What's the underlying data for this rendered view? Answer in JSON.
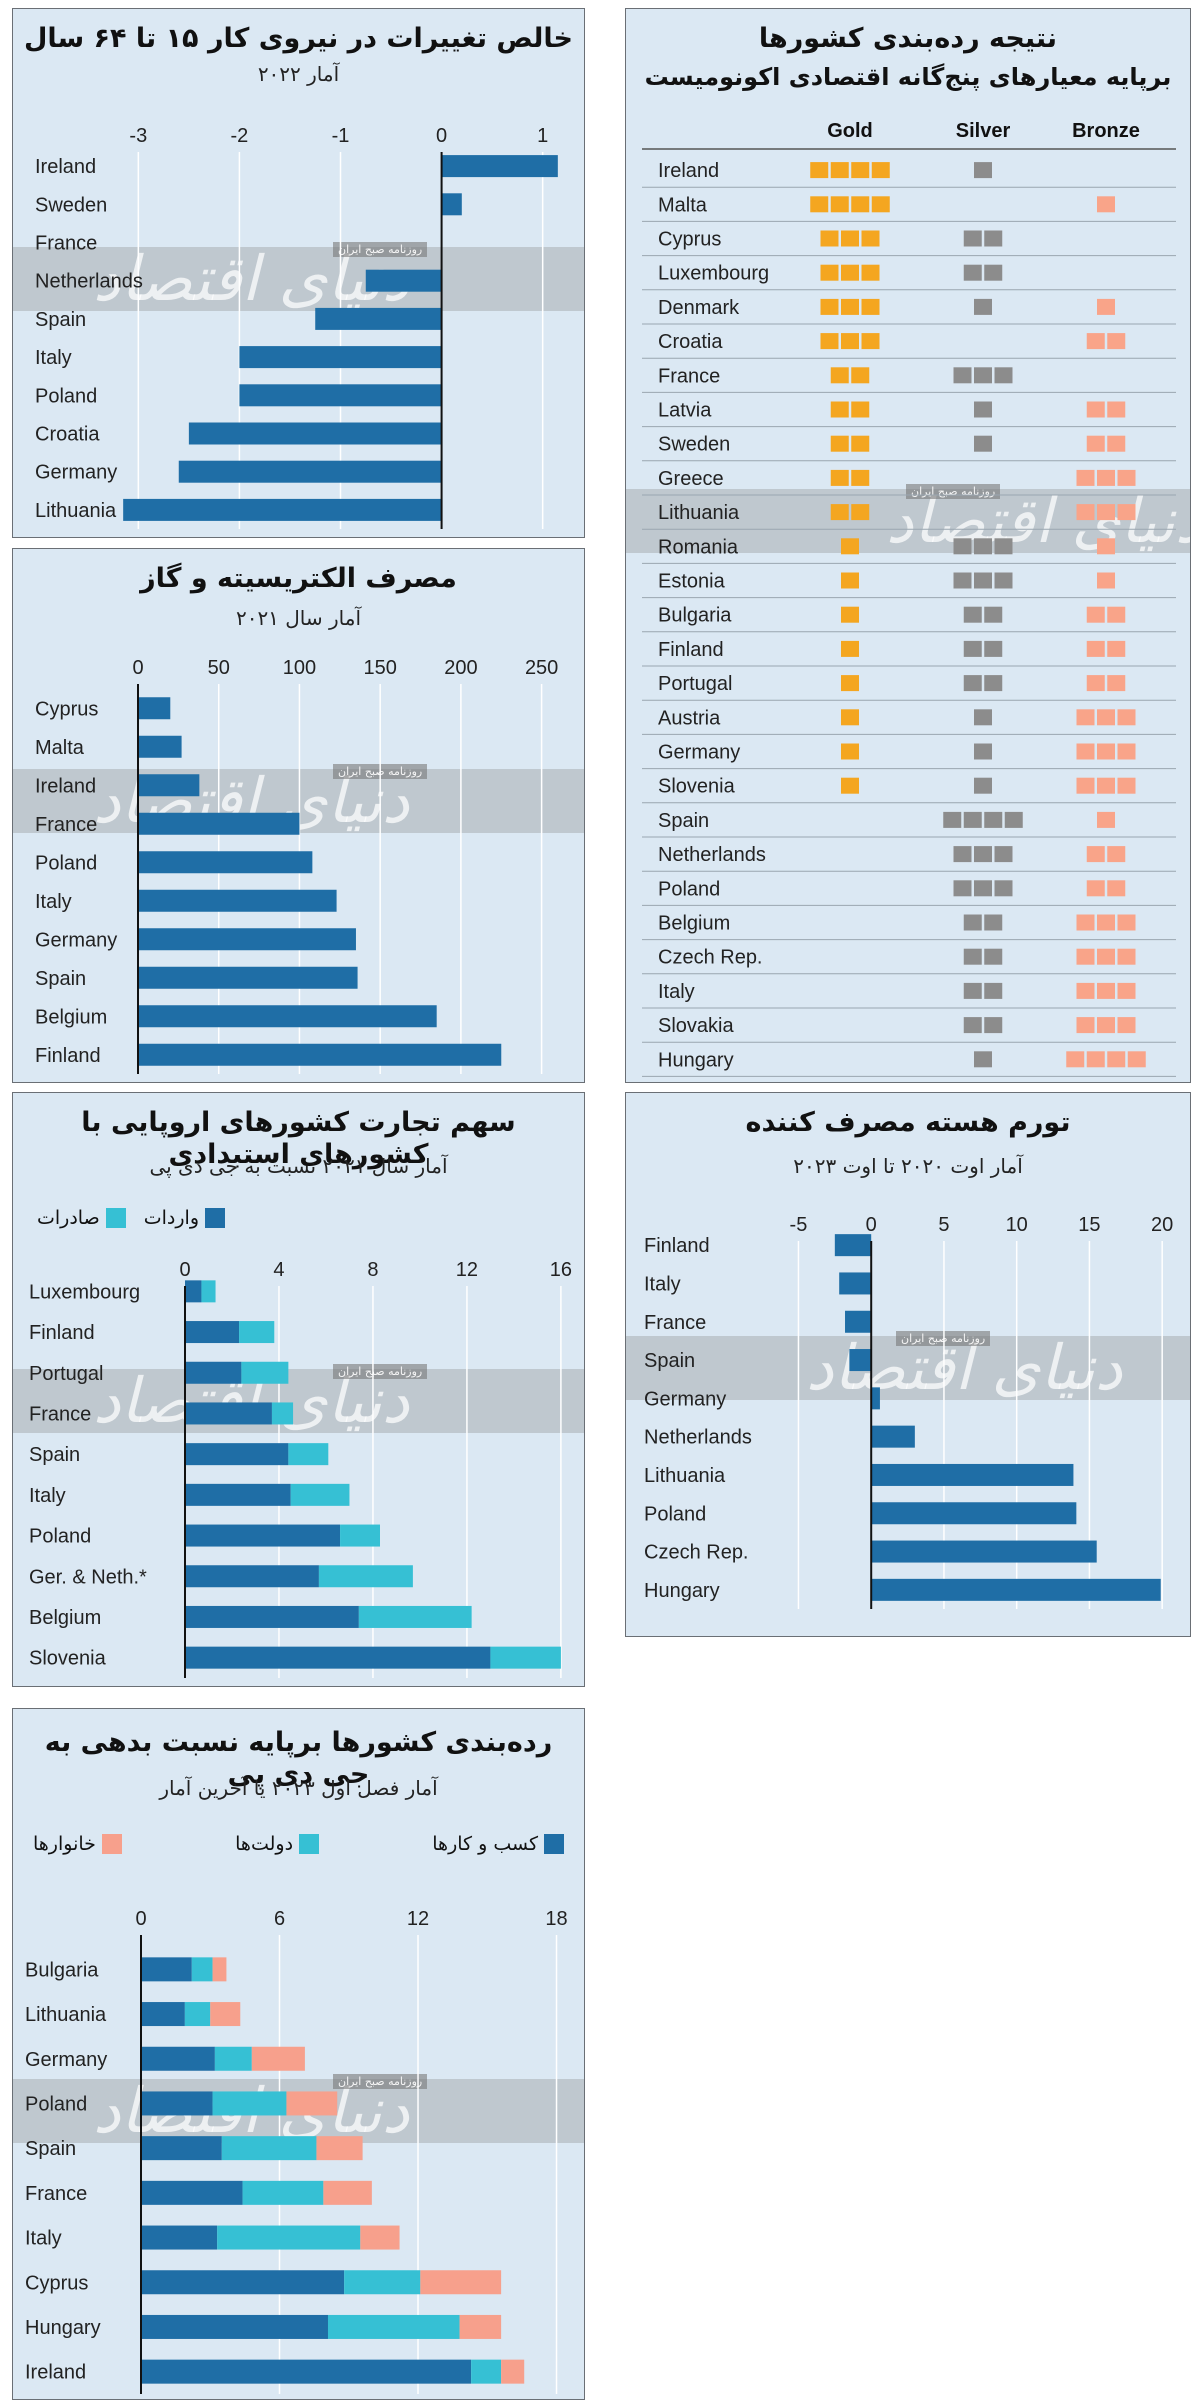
{
  "watermark": {
    "brand": "دنیای اقتصاد",
    "sub": "روزنامه صبح ایران"
  },
  "colors": {
    "blue": "#1f6ea6",
    "teal": "#36c0d4",
    "salmon": "#f7a08c",
    "gold": "#f4a620",
    "silver": "#8c8c8c",
    "bronze": "#f9a489"
  },
  "panels": {
    "workforce": {
      "title": "خالص تغییرات در نیروی کار ۱۵ تا ۶۴ سال",
      "subtitle": "آمار ۲۰۲۲",
      "chart_data": {
        "type": "bar",
        "orientation": "horizontal",
        "categories": [
          "Ireland",
          "Sweden",
          "France",
          "Netherlands",
          "Spain",
          "Italy",
          "Poland",
          "Croatia",
          "Germany",
          "Lithuania"
        ],
        "values": [
          1.15,
          0.2,
          0,
          -0.75,
          -1.25,
          -2.0,
          -2.0,
          -2.5,
          -2.6,
          -3.15
        ],
        "xlim": [
          -3.3,
          1.3
        ],
        "ticks": [
          -3,
          -2,
          -1,
          0,
          1
        ]
      }
    },
    "electricity": {
      "title": "مصرف الکتریسیته و گاز",
      "subtitle": "آمار سال ۲۰۲۱",
      "chart_data": {
        "type": "bar",
        "orientation": "horizontal",
        "categories": [
          "Cyprus",
          "Malta",
          "Ireland",
          "France",
          "Poland",
          "Italy",
          "Germany",
          "Spain",
          "Belgium",
          "Finland"
        ],
        "values": [
          20,
          27,
          38,
          100,
          108,
          123,
          135,
          136,
          185,
          225
        ],
        "xlim": [
          0,
          262
        ],
        "ticks": [
          0,
          50,
          100,
          150,
          200,
          250
        ]
      }
    },
    "trade": {
      "title": "سهم تجارت کشورهای اروپایی با کشورهای استبدادی",
      "subtitle": "آمار سال ۲۰۲۱ نسبت به جی دی پی",
      "legend": [
        {
          "label": "واردات",
          "color": "#1f6ea6"
        },
        {
          "label": "صادرات",
          "color": "#36c0d4"
        }
      ],
      "chart_data": {
        "type": "bar",
        "orientation": "horizontal",
        "stacked": true,
        "categories": [
          "Luxembourg",
          "Finland",
          "Portugal",
          "France",
          "Spain",
          "Italy",
          "Poland",
          "Ger. & Neth.*",
          "Belgium",
          "Slovenia"
        ],
        "series": [
          {
            "name": "واردات",
            "values": [
              0.7,
              2.3,
              2.4,
              3.7,
              4.4,
              4.5,
              6.6,
              5.7,
              7.4,
              13.0
            ]
          },
          {
            "name": "صادرات",
            "values": [
              0.6,
              1.5,
              2.0,
              0.9,
              1.7,
              2.5,
              1.7,
              4.0,
              4.8,
              3.0
            ]
          }
        ],
        "xlim": [
          0,
          16.6
        ],
        "ticks": [
          0,
          4,
          8,
          12,
          16
        ]
      }
    },
    "debt": {
      "title": "رده‌بندی کشورها برپایه نسبت بدهی به جی دی پی",
      "subtitle": "آمار فصل اول ۲۰۲۳ یا آخرین آمار",
      "legend": [
        {
          "label": "کسب و کارها",
          "color": "#1f6ea6"
        },
        {
          "label": "دولت‌ها",
          "color": "#36c0d4"
        },
        {
          "label": "خانوارها",
          "color": "#f7a08c"
        }
      ],
      "chart_data": {
        "type": "bar",
        "orientation": "horizontal",
        "stacked": true,
        "categories": [
          "Bulgaria",
          "Lithuania",
          "Germany",
          "Poland",
          "Spain",
          "France",
          "Italy",
          "Cyprus",
          "Hungary",
          "Ireland"
        ],
        "series": [
          {
            "name": "کسب و کارها",
            "values": [
              2.2,
              1.9,
              3.2,
              3.1,
              3.5,
              4.4,
              3.3,
              8.8,
              8.1,
              14.3
            ]
          },
          {
            "name": "دولت‌ها",
            "values": [
              0.9,
              1.1,
              1.6,
              3.2,
              4.1,
              3.5,
              6.2,
              3.3,
              5.7,
              1.3
            ]
          },
          {
            "name": "خانوارها",
            "values": [
              0.6,
              1.3,
              2.3,
              2.2,
              2.0,
              2.1,
              1.7,
              3.5,
              1.8,
              1.0
            ]
          }
        ],
        "xlim": [
          0,
          18.8
        ],
        "ticks": [
          0,
          6,
          12,
          18
        ]
      }
    },
    "ranking": {
      "title": "نتیجه رده‌بندی کشورها",
      "subtitle": "برپایه معیارهای پنج‌گانه اقتصادی اکونومیست",
      "chart_data": {
        "type": "table",
        "columns": [
          "Gold",
          "Silver",
          "Bronze"
        ],
        "rows": [
          {
            "country": "Ireland",
            "gold": 4,
            "silver": 1,
            "bronze": 0
          },
          {
            "country": "Malta",
            "gold": 4,
            "silver": 0,
            "bronze": 1
          },
          {
            "country": "Cyprus",
            "gold": 3,
            "silver": 2,
            "bronze": 0
          },
          {
            "country": "Luxembourg",
            "gold": 3,
            "silver": 2,
            "bronze": 0
          },
          {
            "country": "Denmark",
            "gold": 3,
            "silver": 1,
            "bronze": 1
          },
          {
            "country": "Croatia",
            "gold": 3,
            "silver": 0,
            "bronze": 2
          },
          {
            "country": "France",
            "gold": 2,
            "silver": 3,
            "bronze": 0
          },
          {
            "country": "Latvia",
            "gold": 2,
            "silver": 1,
            "bronze": 2
          },
          {
            "country": "Sweden",
            "gold": 2,
            "silver": 1,
            "bronze": 2
          },
          {
            "country": "Greece",
            "gold": 2,
            "silver": 0,
            "bronze": 3
          },
          {
            "country": "Lithuania",
            "gold": 2,
            "silver": 0,
            "bronze": 3
          },
          {
            "country": "Romania",
            "gold": 1,
            "silver": 3,
            "bronze": 1
          },
          {
            "country": "Estonia",
            "gold": 1,
            "silver": 3,
            "bronze": 1
          },
          {
            "country": "Bulgaria",
            "gold": 1,
            "silver": 2,
            "bronze": 2
          },
          {
            "country": "Finland",
            "gold": 1,
            "silver": 2,
            "bronze": 2
          },
          {
            "country": "Portugal",
            "gold": 1,
            "silver": 2,
            "bronze": 2
          },
          {
            "country": "Austria",
            "gold": 1,
            "silver": 1,
            "bronze": 3
          },
          {
            "country": "Germany",
            "gold": 1,
            "silver": 1,
            "bronze": 3
          },
          {
            "country": "Slovenia",
            "gold": 1,
            "silver": 1,
            "bronze": 3
          },
          {
            "country": "Spain",
            "gold": 0,
            "silver": 4,
            "bronze": 1
          },
          {
            "country": "Netherlands",
            "gold": 0,
            "silver": 3,
            "bronze": 2
          },
          {
            "country": "Poland",
            "gold": 0,
            "silver": 3,
            "bronze": 2
          },
          {
            "country": "Belgium",
            "gold": 0,
            "silver": 2,
            "bronze": 3
          },
          {
            "country": "Czech Rep.",
            "gold": 0,
            "silver": 2,
            "bronze": 3
          },
          {
            "country": "Italy",
            "gold": 0,
            "silver": 2,
            "bronze": 3
          },
          {
            "country": "Slovakia",
            "gold": 0,
            "silver": 2,
            "bronze": 3
          },
          {
            "country": "Hungary",
            "gold": 0,
            "silver": 1,
            "bronze": 4
          }
        ]
      }
    },
    "inflation": {
      "title": "تورم هسته مصرف کننده",
      "subtitle": "آمار اوت ۲۰۲۰ تا اوت ۲۰۲۳",
      "chart_data": {
        "type": "bar",
        "orientation": "horizontal",
        "categories": [
          "Finland",
          "Italy",
          "France",
          "Spain",
          "Germany",
          "Netherlands",
          "Lithuania",
          "Poland",
          "Czech Rep.",
          "Hungary"
        ],
        "values": [
          -2.5,
          -2.2,
          -1.8,
          -1.5,
          0.6,
          3.0,
          13.9,
          14.1,
          15.5,
          19.9
        ],
        "xlim": [
          -6.2,
          21.5
        ],
        "ticks": [
          -5,
          0,
          5,
          10,
          15,
          20
        ]
      }
    }
  }
}
